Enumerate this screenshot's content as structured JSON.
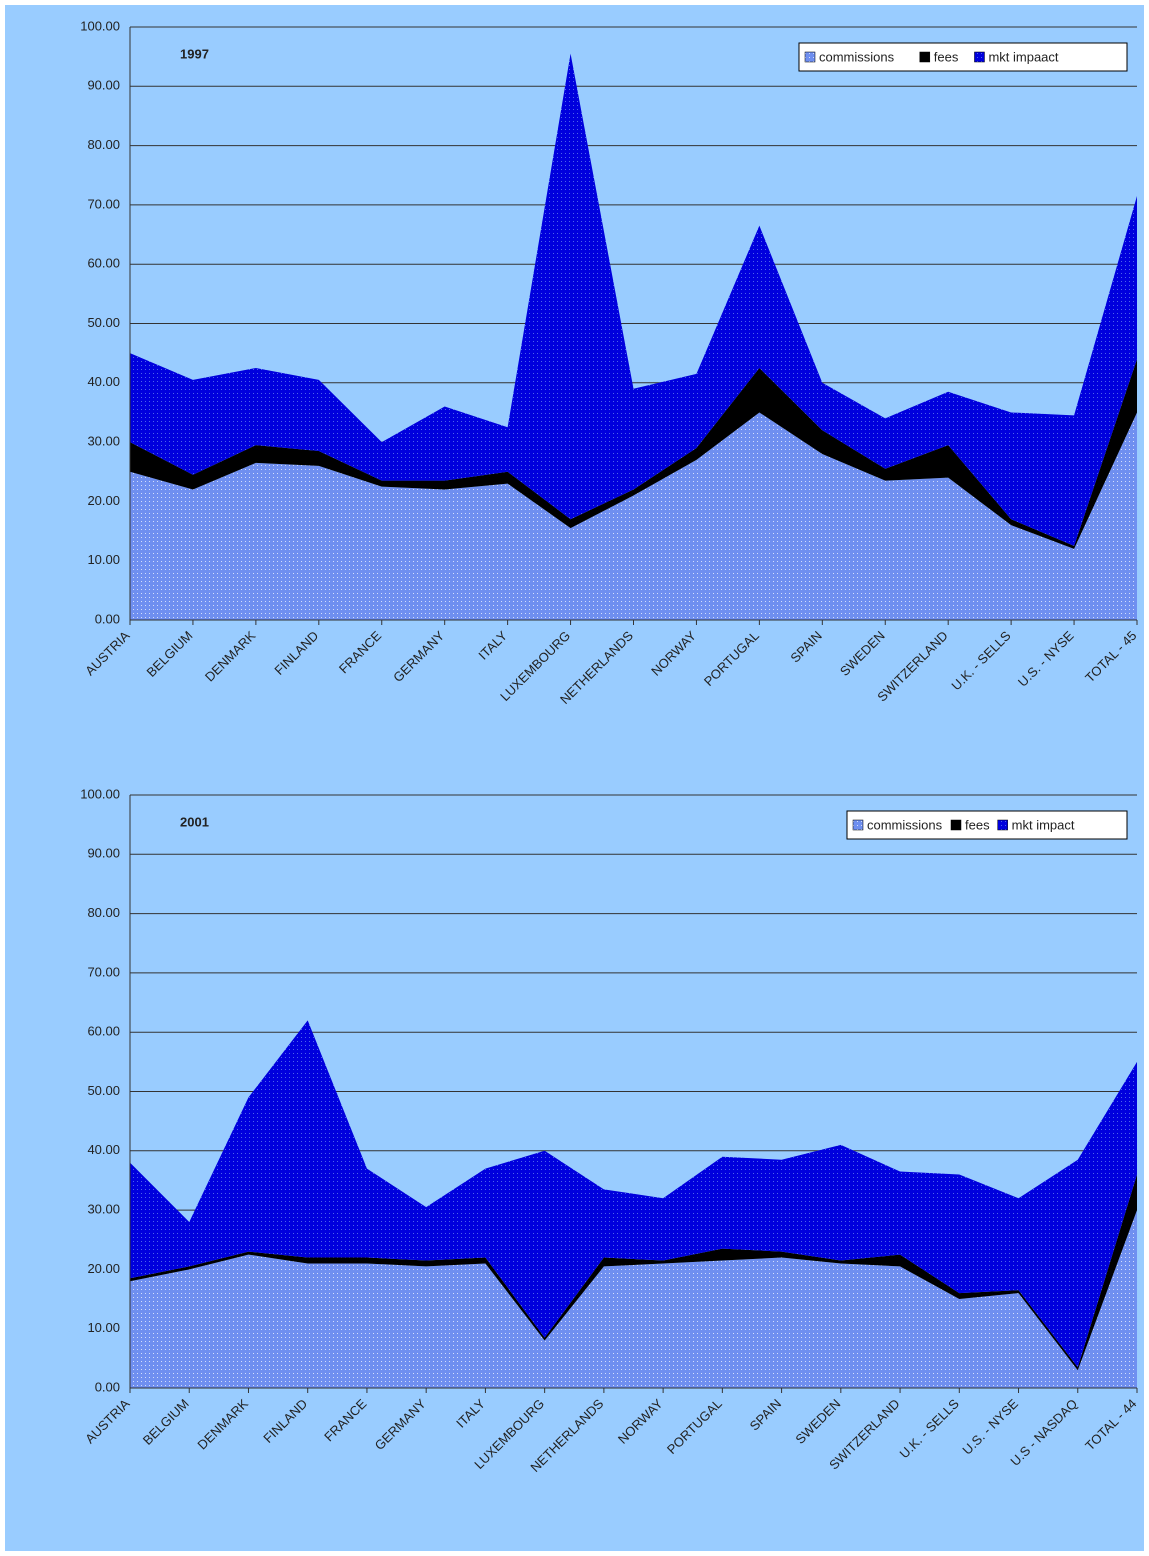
{
  "chart_data": [
    {
      "type": "stacked_area",
      "title": "1997",
      "categories": [
        "AUSTRIA",
        "BELGIUM",
        "DENMARK",
        "FINLAND",
        "FRANCE",
        "GERMANY",
        "ITALY",
        "LUXEMBOURG",
        "NETHERLANDS",
        "NORWAY",
        "PORTUGAL",
        "SPAIN",
        "SWEDEN",
        "SWITZERLAND",
        "U.K. - SELLS",
        "U.S. - NYSE",
        "TOTAL - 45"
      ],
      "series": [
        {
          "name": "commissions",
          "color": "#6f8ff0",
          "values": [
            25,
            22,
            26.5,
            26,
            22.5,
            22,
            23,
            15.5,
            21,
            27,
            35,
            28,
            23.5,
            24,
            16,
            12,
            35
          ]
        },
        {
          "name": "fees",
          "color": "#000000",
          "values": [
            5,
            2.5,
            3,
            2.5,
            1,
            1.5,
            2,
            1.5,
            1,
            2,
            7.5,
            4,
            2,
            5.5,
            1,
            0.5,
            9
          ]
        },
        {
          "name": "mkt impaact",
          "color": "#0000dd",
          "values": [
            15,
            16,
            13,
            12,
            6.5,
            12.5,
            7.5,
            78.5,
            17,
            12.5,
            24,
            8,
            8.5,
            9,
            18,
            22,
            27.5
          ]
        }
      ],
      "ylim": [
        0,
        100
      ],
      "yticks": [
        {
          "value": 0,
          "label": "0.00"
        },
        {
          "value": 10,
          "label": "10.00"
        },
        {
          "value": 20,
          "label": "20.00"
        },
        {
          "value": 30,
          "label": "30.00"
        },
        {
          "value": 40,
          "label": "40.00"
        },
        {
          "value": 50,
          "label": "50.00"
        },
        {
          "value": 60,
          "label": "60.00"
        },
        {
          "value": 70,
          "label": "70.00"
        },
        {
          "value": 80,
          "label": "80.00"
        },
        {
          "value": 90,
          "label": "90.00"
        },
        {
          "value": 100,
          "label": "100.00"
        }
      ],
      "grid": true,
      "legend": "top-right"
    },
    {
      "type": "stacked_area",
      "title": "2001",
      "categories": [
        "AUSTRIA",
        "BELGIUM",
        "DENMARK",
        "FINLAND",
        "FRANCE",
        "GERMANY",
        "ITALY",
        "LUXEMBOURG",
        "NETHERLANDS",
        "NORWAY",
        "PORTUGAL",
        "SPAIN",
        "SWEDEN",
        "SWITZERLAND",
        "U.K. - SELLS",
        "U.S. - NYSE",
        "U.S - NASDAQ",
        "TOTAL - 44"
      ],
      "series": [
        {
          "name": "commissions",
          "color": "#6f8ff0",
          "values": [
            18,
            20,
            22.5,
            21,
            21,
            20.5,
            21,
            8,
            20.5,
            21,
            21.5,
            22,
            21,
            20.5,
            15,
            16,
            3,
            30
          ]
        },
        {
          "name": "fees",
          "color": "#000000",
          "values": [
            0.5,
            0.5,
            0.5,
            1,
            1,
            1,
            1,
            0.5,
            1.5,
            0.5,
            2,
            1,
            0.5,
            2,
            1,
            0.5,
            0.5,
            6
          ]
        },
        {
          "name": "mkt impact",
          "color": "#0000dd",
          "values": [
            19.5,
            7.5,
            26,
            40,
            15,
            9,
            15,
            31.5,
            11.5,
            10.5,
            15.5,
            15.5,
            19.5,
            14,
            20,
            15.5,
            35,
            19
          ]
        }
      ],
      "ylim": [
        0,
        100
      ],
      "yticks": [
        {
          "value": 0,
          "label": "0.00"
        },
        {
          "value": 10,
          "label": "10.00"
        },
        {
          "value": 20,
          "label": "20.00"
        },
        {
          "value": 30,
          "label": "30.00"
        },
        {
          "value": 40,
          "label": "40.00"
        },
        {
          "value": 50,
          "label": "50.00"
        },
        {
          "value": 60,
          "label": "60.00"
        },
        {
          "value": 70,
          "label": "70.00"
        },
        {
          "value": 80,
          "label": "80.00"
        },
        {
          "value": 90,
          "label": "90.00"
        },
        {
          "value": 100,
          "label": "100.00"
        }
      ],
      "grid": true,
      "legend": "top-right"
    }
  ]
}
